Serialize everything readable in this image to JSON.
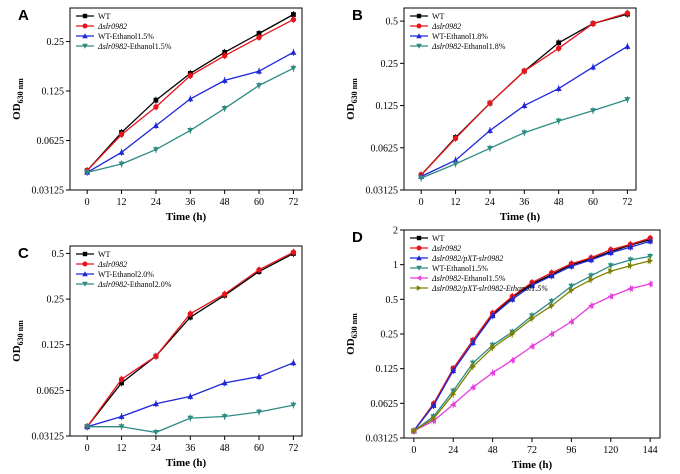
{
  "figure": {
    "ylabel_main": "OD",
    "ylabel_sub": "630 nm"
  },
  "chart_data": [
    {
      "panel": "A",
      "type": "line",
      "xlabel": "Time (h)",
      "ylabel": "OD630 nm",
      "yscale": "log2",
      "ylim": [
        0.03125,
        0.4
      ],
      "xlim": [
        -6,
        75
      ],
      "xticks": [
        0,
        12,
        24,
        36,
        48,
        60,
        72
      ],
      "yticks": [
        0.03125,
        0.0625,
        0.125,
        0.25
      ],
      "ytick_labels": [
        "0.03125",
        "0.0625",
        "0.125",
        "0.25"
      ],
      "legend_position": "top-left",
      "series": [
        {
          "name": "WT",
          "name_parts": [
            "WT",
            ""
          ],
          "color": "#000000",
          "marker": "square",
          "x": [
            0,
            12,
            24,
            36,
            48,
            60,
            72
          ],
          "values": [
            0.041,
            0.07,
            0.11,
            0.16,
            0.215,
            0.28,
            0.365
          ]
        },
        {
          "name": "Δslr0982",
          "name_parts": [
            "Δslr0982",
            ""
          ],
          "color": "#e8141c",
          "marker": "circle",
          "x": [
            0,
            12,
            24,
            36,
            48,
            60,
            72
          ],
          "values": [
            0.041,
            0.068,
            0.1,
            0.155,
            0.205,
            0.265,
            0.34
          ]
        },
        {
          "name": "WT-Ethanol1.5%",
          "name_parts": [
            "WT-Ethanol1.5%",
            ""
          ],
          "color": "#1f26d6",
          "marker": "triangle-up",
          "x": [
            0,
            12,
            24,
            36,
            48,
            60,
            72
          ],
          "values": [
            0.04,
            0.053,
            0.077,
            0.112,
            0.145,
            0.165,
            0.215
          ]
        },
        {
          "name": "Δslr0982-Ethanol1.5%",
          "name_parts": [
            "Δslr0982",
            "-Ethanol1.5%"
          ],
          "color": "#2e8b84",
          "marker": "triangle-down",
          "x": [
            0,
            12,
            24,
            36,
            48,
            60,
            72
          ],
          "values": [
            0.04,
            0.045,
            0.055,
            0.072,
            0.098,
            0.135,
            0.172
          ]
        }
      ]
    },
    {
      "panel": "B",
      "type": "line",
      "xlabel": "Time (h)",
      "ylabel": "OD630 nm",
      "yscale": "log2",
      "ylim": [
        0.03125,
        0.62
      ],
      "xlim": [
        -6,
        75
      ],
      "xticks": [
        0,
        12,
        24,
        36,
        48,
        60,
        72
      ],
      "yticks": [
        0.03125,
        0.0625,
        0.125,
        0.25,
        0.5
      ],
      "ytick_labels": [
        "0.03125",
        "0.0625",
        "0.125",
        "0.25",
        "0.5"
      ],
      "legend_position": "top-left",
      "series": [
        {
          "name": "WT",
          "name_parts": [
            "WT",
            ""
          ],
          "color": "#000000",
          "marker": "square",
          "x": [
            0,
            12,
            24,
            36,
            48,
            60,
            72
          ],
          "values": [
            0.04,
            0.074,
            0.13,
            0.22,
            0.35,
            0.48,
            0.56
          ]
        },
        {
          "name": "Δslr0982",
          "name_parts": [
            "Δslr0982",
            ""
          ],
          "color": "#e8141c",
          "marker": "circle",
          "x": [
            0,
            12,
            24,
            36,
            48,
            60,
            72
          ],
          "values": [
            0.04,
            0.073,
            0.13,
            0.22,
            0.32,
            0.48,
            0.57
          ]
        },
        {
          "name": "WT-Ethanol1.8%",
          "name_parts": [
            "WT-Ethanol1.8%",
            ""
          ],
          "color": "#1f26d6",
          "marker": "triangle-up",
          "x": [
            0,
            12,
            24,
            36,
            48,
            60,
            72
          ],
          "values": [
            0.039,
            0.051,
            0.083,
            0.125,
            0.165,
            0.235,
            0.33
          ]
        },
        {
          "name": "Δslr0982-Ethanol1.8%",
          "name_parts": [
            "Δslr0982",
            "-Ethanol1.8%"
          ],
          "color": "#2e8b84",
          "marker": "triangle-down",
          "x": [
            0,
            12,
            24,
            36,
            48,
            60,
            72
          ],
          "values": [
            0.038,
            0.048,
            0.062,
            0.08,
            0.097,
            0.115,
            0.138
          ]
        }
      ]
    },
    {
      "panel": "C",
      "type": "line",
      "xlabel": "Time (h)",
      "ylabel": "OD630 nm",
      "yscale": "log2",
      "ylim": [
        0.03125,
        0.56
      ],
      "xlim": [
        -6,
        75
      ],
      "xticks": [
        0,
        12,
        24,
        36,
        48,
        60,
        72
      ],
      "yticks": [
        0.03125,
        0.0625,
        0.125,
        0.25,
        0.5
      ],
      "ytick_labels": [
        "0.03125",
        "0.0625",
        "0.125",
        "0.25",
        "0.5"
      ],
      "legend_position": "top-left",
      "series": [
        {
          "name": "WT",
          "name_parts": [
            "WT",
            ""
          ],
          "color": "#000000",
          "marker": "square",
          "x": [
            0,
            12,
            24,
            36,
            48,
            60,
            72
          ],
          "values": [
            0.036,
            0.07,
            0.105,
            0.19,
            0.265,
            0.38,
            0.5
          ]
        },
        {
          "name": "Δslr0982",
          "name_parts": [
            "Δslr0982",
            ""
          ],
          "color": "#e8141c",
          "marker": "circle",
          "x": [
            0,
            12,
            24,
            36,
            48,
            60,
            72
          ],
          "values": [
            0.036,
            0.074,
            0.105,
            0.2,
            0.27,
            0.39,
            0.51
          ]
        },
        {
          "name": "WT-Ethanol2.0%",
          "name_parts": [
            "WT-Ethanol2.0%",
            ""
          ],
          "color": "#1f26d6",
          "marker": "triangle-up",
          "x": [
            0,
            12,
            24,
            36,
            48,
            60,
            72
          ],
          "values": [
            0.036,
            0.042,
            0.051,
            0.057,
            0.07,
            0.077,
            0.095
          ]
        },
        {
          "name": "Δslr0982-Ethanol2.0%",
          "name_parts": [
            "Δslr0982",
            "-Ethanol2.0%"
          ],
          "color": "#2e8b84",
          "marker": "triangle-down",
          "x": [
            0,
            12,
            24,
            36,
            48,
            60,
            72
          ],
          "values": [
            0.036,
            0.036,
            0.033,
            0.041,
            0.042,
            0.045,
            0.05
          ]
        }
      ]
    },
    {
      "panel": "D",
      "type": "line",
      "xlabel": "Time (h)",
      "ylabel": "OD630 nm",
      "yscale": "log2",
      "ylim": [
        0.03125,
        2.0
      ],
      "xlim": [
        -6,
        150
      ],
      "xticks": [
        0,
        24,
        48,
        72,
        96,
        120,
        144
      ],
      "yticks": [
        0.03125,
        0.0625,
        0.125,
        0.25,
        0.5,
        1,
        2
      ],
      "ytick_labels": [
        "0.03125",
        "0.0625",
        "0.125",
        "0.25",
        "0.5",
        "1",
        "2"
      ],
      "legend_position": "top-left",
      "series": [
        {
          "name": "WT",
          "name_parts": [
            "WT",
            ""
          ],
          "color": "#000000",
          "marker": "square",
          "x": [
            0,
            12,
            24,
            36,
            48,
            60,
            72,
            84,
            96,
            108,
            120,
            132,
            144
          ],
          "values": [
            0.036,
            0.06,
            0.125,
            0.22,
            0.37,
            0.52,
            0.68,
            0.82,
            1.0,
            1.12,
            1.3,
            1.48,
            1.65
          ]
        },
        {
          "name": "Δslr0982",
          "name_parts": [
            "Δslr0982",
            ""
          ],
          "color": "#e8141c",
          "marker": "circle",
          "x": [
            0,
            12,
            24,
            36,
            48,
            60,
            72,
            84,
            96,
            108,
            120,
            132,
            144
          ],
          "values": [
            0.036,
            0.062,
            0.125,
            0.22,
            0.38,
            0.53,
            0.7,
            0.85,
            1.02,
            1.15,
            1.35,
            1.5,
            1.7
          ]
        },
        {
          "name": "Δslr0982/pXT-slr0982",
          "name_parts": [
            "Δslr0982",
            "/pXT-slr0982"
          ],
          "color": "#1f26d6",
          "marker": "triangle-up",
          "x": [
            0,
            12,
            24,
            36,
            48,
            60,
            72,
            84,
            96,
            108,
            120,
            132,
            144
          ],
          "values": [
            0.036,
            0.06,
            0.12,
            0.21,
            0.36,
            0.5,
            0.66,
            0.8,
            0.97,
            1.1,
            1.27,
            1.42,
            1.6
          ]
        },
        {
          "name": "WT-Ethanol1.5%",
          "name_parts": [
            "WT-Ethanol1.5%",
            ""
          ],
          "color": "#2e8b84",
          "marker": "triangle-down",
          "x": [
            0,
            12,
            24,
            36,
            48,
            60,
            72,
            84,
            96,
            108,
            120,
            132,
            144
          ],
          "values": [
            0.036,
            0.048,
            0.08,
            0.14,
            0.2,
            0.26,
            0.36,
            0.48,
            0.65,
            0.8,
            0.98,
            1.1,
            1.18
          ]
        },
        {
          "name": "Δslr0982-Ethanol1.5%",
          "name_parts": [
            "Δslr0982",
            "-Ethanol1.5%"
          ],
          "color": "#e63ee0",
          "marker": "triangle-left",
          "x": [
            0,
            12,
            24,
            36,
            48,
            60,
            72,
            84,
            96,
            108,
            120,
            132,
            144
          ],
          "values": [
            0.036,
            0.044,
            0.061,
            0.086,
            0.115,
            0.148,
            0.195,
            0.25,
            0.32,
            0.44,
            0.53,
            0.62,
            0.68
          ]
        },
        {
          "name": "Δslr0982/pXT-slr0982-Ethanol1.5%",
          "name_parts": [
            "Δslr0982",
            "/pXT-slr0982-Ethanol1.5%"
          ],
          "color": "#808000",
          "marker": "triangle-right",
          "x": [
            0,
            12,
            24,
            36,
            48,
            60,
            72,
            84,
            96,
            108,
            120,
            132,
            144
          ],
          "values": [
            0.036,
            0.046,
            0.075,
            0.13,
            0.19,
            0.25,
            0.34,
            0.44,
            0.6,
            0.74,
            0.88,
            0.98,
            1.08
          ]
        }
      ]
    }
  ]
}
